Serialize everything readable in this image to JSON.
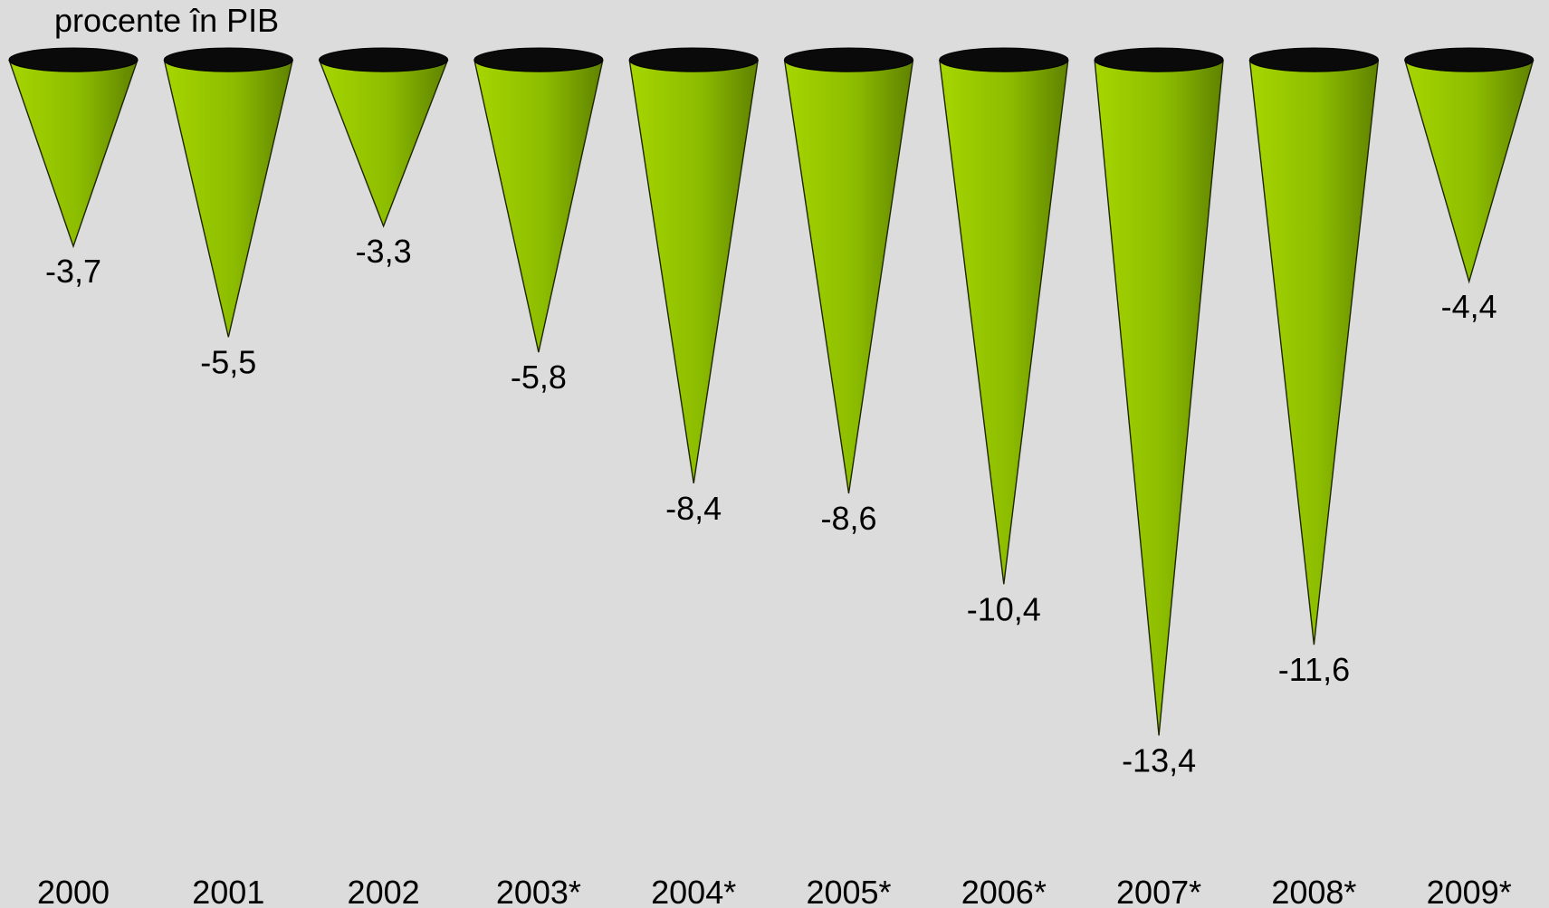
{
  "chart_data": {
    "type": "bar",
    "mark_shape": "cone",
    "unit_label": "procente în PIB",
    "categories": [
      "2000",
      "2001",
      "2002",
      "2003*",
      "2004*",
      "2005*",
      "2006*",
      "2007*",
      "2008*",
      "2009*"
    ],
    "series": [
      {
        "values": [
          -3.7,
          -5.5,
          -3.3,
          -5.8,
          -8.4,
          -8.6,
          -10.4,
          -13.4,
          -11.6,
          -4.4
        ],
        "value_labels": [
          "-3,7",
          "-5,5",
          "-3,3",
          "-5,8",
          "-8,4",
          "-8,6",
          "-10,4",
          "-13,4",
          "-11,6",
          "-4,4"
        ]
      }
    ],
    "ylim": [
      -13.4,
      0
    ],
    "grid": false,
    "legend": "none",
    "colors": {
      "background": "#dcdcdc",
      "cone_light": "#a6d600",
      "cone_dark": "#5f8200",
      "cone_top": "#0a0a0a",
      "text": "#000000"
    }
  }
}
